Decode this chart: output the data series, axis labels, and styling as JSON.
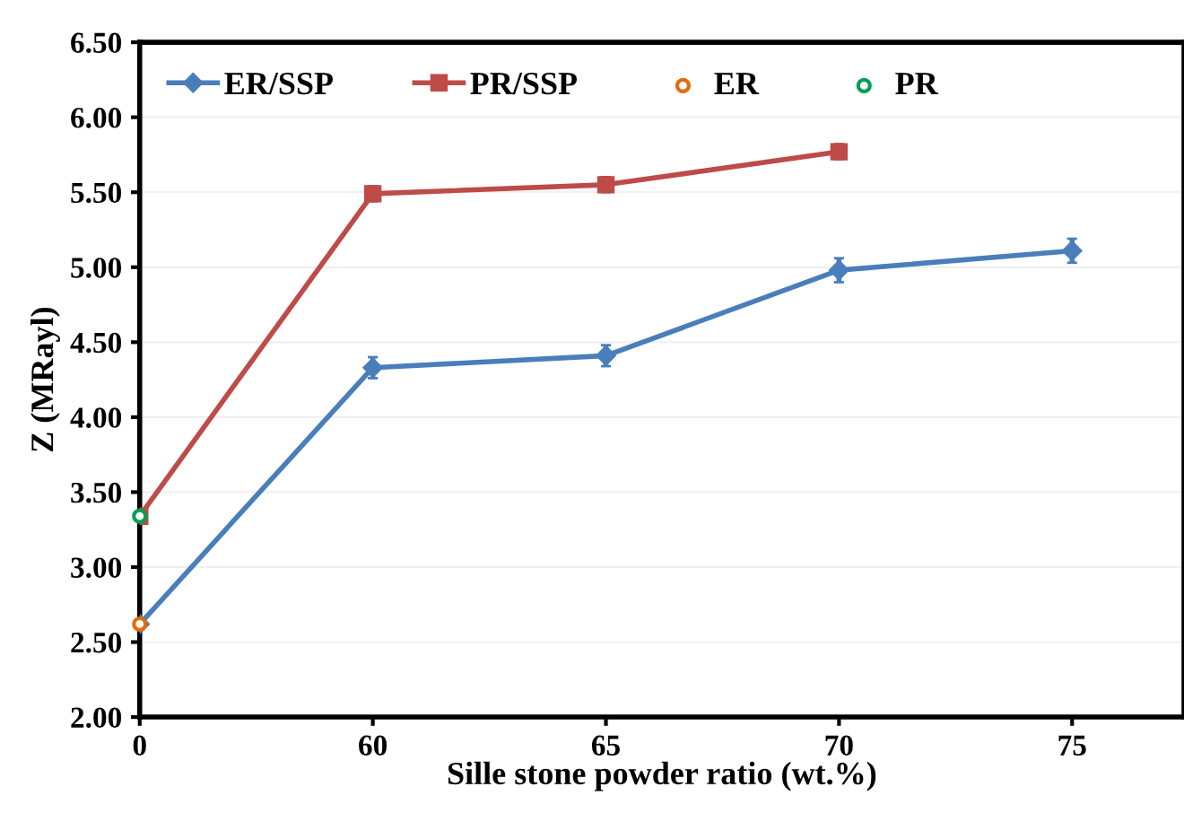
{
  "chart_data": {
    "type": "line",
    "xlabel": "Sille stone powder ratio (wt.%)",
    "ylabel": "Z (MRayl)",
    "categories": [
      "0",
      "60",
      "65",
      "70",
      "75"
    ],
    "series": [
      {
        "name": "ER/SSP",
        "color": "#4a7ebb",
        "marker": "diamond",
        "values": [
          2.62,
          4.33,
          4.41,
          4.98,
          5.11
        ],
        "errors": [
          null,
          0.07,
          0.07,
          0.08,
          0.08
        ]
      },
      {
        "name": "PR/SSP",
        "color": "#be4b48",
        "marker": "square",
        "values": [
          3.34,
          5.49,
          5.55,
          5.77,
          null
        ],
        "errors": [
          null,
          0.05,
          0.05,
          0.05,
          null
        ]
      },
      {
        "name": "ER",
        "type": "scatter",
        "color": "#e46c0a",
        "marker": "circle",
        "values": [
          2.62,
          null,
          null,
          null,
          null
        ]
      },
      {
        "name": "PR",
        "type": "scatter",
        "color": "#00a050",
        "marker": "circle",
        "values": [
          3.34,
          null,
          null,
          null,
          null
        ]
      }
    ],
    "ylim": [
      2.0,
      6.5
    ],
    "yticks": [
      {
        "value": 2.0,
        "label": "2.00"
      },
      {
        "value": 2.5,
        "label": "2.50"
      },
      {
        "value": 3.0,
        "label": "3.00"
      },
      {
        "value": 3.5,
        "label": "3.50"
      },
      {
        "value": 4.0,
        "label": "4.00"
      },
      {
        "value": 4.5,
        "label": "4.50"
      },
      {
        "value": 5.0,
        "label": "5.00"
      },
      {
        "value": 5.5,
        "label": "5.50"
      },
      {
        "value": 6.0,
        "label": "6.00"
      },
      {
        "value": 6.5,
        "label": "6.50"
      }
    ],
    "grid": "y",
    "legend": "top left",
    "line_style": "solid"
  }
}
